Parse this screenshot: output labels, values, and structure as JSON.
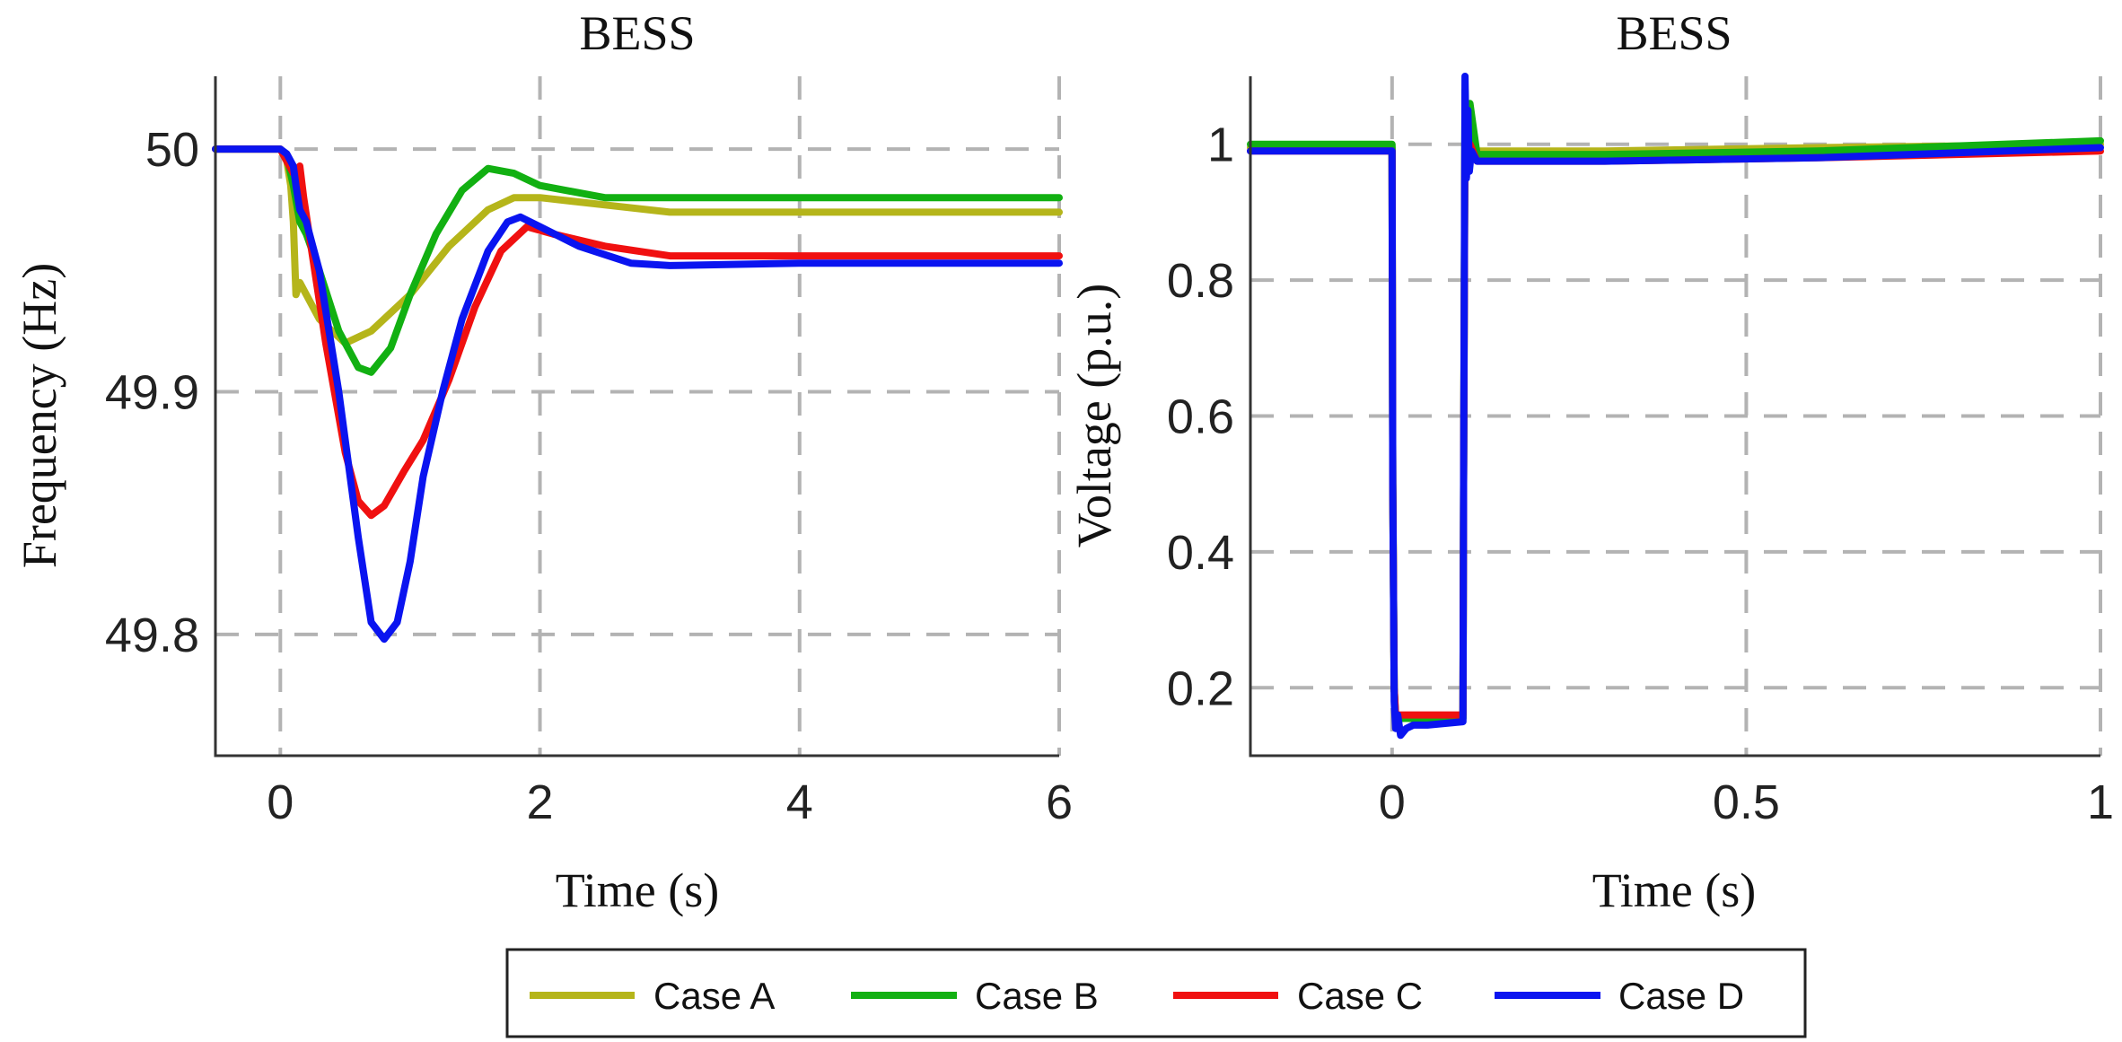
{
  "chart_data": [
    {
      "type": "line",
      "title": "BESS",
      "xlabel": "Time (s)",
      "ylabel": "Frequency (Hz)",
      "xlim": [
        -0.5,
        6
      ],
      "ylim": [
        49.75,
        50.03
      ],
      "xticks": [
        0,
        2,
        4,
        6
      ],
      "xtick_labels": [
        "0",
        "2",
        "4",
        "6"
      ],
      "yticks": [
        49.8,
        49.9,
        50
      ],
      "ytick_labels": [
        "49.8",
        "49.9",
        "50"
      ],
      "grid": true,
      "series": [
        {
          "name": "Case A",
          "color": "#b5b51a",
          "x": [
            -0.5,
            0.0,
            0.05,
            0.08,
            0.1,
            0.12,
            0.15,
            0.2,
            0.3,
            0.5,
            0.7,
            1.0,
            1.3,
            1.6,
            1.8,
            2.0,
            2.5,
            3.0,
            4.0,
            6.0
          ],
          "y": [
            50.0,
            50.0,
            49.995,
            49.985,
            49.97,
            49.94,
            49.945,
            49.94,
            49.93,
            49.92,
            49.925,
            49.94,
            49.96,
            49.975,
            49.98,
            49.98,
            49.977,
            49.974,
            49.974,
            49.974
          ]
        },
        {
          "name": "Case B",
          "color": "#12b012",
          "x": [
            -0.5,
            0.0,
            0.05,
            0.1,
            0.15,
            0.2,
            0.3,
            0.45,
            0.6,
            0.7,
            0.85,
            1.0,
            1.2,
            1.4,
            1.6,
            1.8,
            2.0,
            2.5,
            3.0,
            4.0,
            6.0
          ],
          "y": [
            50.0,
            50.0,
            49.997,
            49.985,
            49.97,
            49.965,
            49.95,
            49.925,
            49.91,
            49.908,
            49.918,
            49.94,
            49.965,
            49.983,
            49.992,
            49.99,
            49.985,
            49.98,
            49.98,
            49.98,
            49.98
          ]
        },
        {
          "name": "Case C",
          "color": "#f01010",
          "x": [
            -0.5,
            0.0,
            0.05,
            0.1,
            0.15,
            0.18,
            0.25,
            0.35,
            0.5,
            0.6,
            0.7,
            0.8,
            0.95,
            1.1,
            1.3,
            1.5,
            1.7,
            1.9,
            2.1,
            2.5,
            3.0,
            4.0,
            6.0
          ],
          "y": [
            50.0,
            50.0,
            49.995,
            49.99,
            49.993,
            49.98,
            49.955,
            49.92,
            49.875,
            49.855,
            49.849,
            49.853,
            49.867,
            49.88,
            49.905,
            49.935,
            49.958,
            49.968,
            49.965,
            49.96,
            49.956,
            49.956,
            49.956
          ]
        },
        {
          "name": "Case D",
          "color": "#0a14f0",
          "x": [
            -0.5,
            0.0,
            0.05,
            0.1,
            0.12,
            0.15,
            0.2,
            0.3,
            0.45,
            0.6,
            0.7,
            0.8,
            0.9,
            1.0,
            1.1,
            1.25,
            1.4,
            1.6,
            1.75,
            1.85,
            2.0,
            2.3,
            2.7,
            3.0,
            4.0,
            6.0
          ],
          "y": [
            50.0,
            50.0,
            49.998,
            49.993,
            49.985,
            49.975,
            49.97,
            49.95,
            49.9,
            49.84,
            49.805,
            49.798,
            49.805,
            49.83,
            49.865,
            49.9,
            49.93,
            49.958,
            49.97,
            49.972,
            49.968,
            49.96,
            49.953,
            49.952,
            49.953,
            49.953
          ]
        }
      ]
    },
    {
      "type": "line",
      "title": "BESS",
      "xlabel": "Time (s)",
      "ylabel": "Voltage (p.u.)",
      "xlim": [
        -0.2,
        1
      ],
      "ylim": [
        0.1,
        1.1
      ],
      "xticks": [
        0,
        0.5,
        1
      ],
      "xtick_labels": [
        "0",
        "0.5",
        "1"
      ],
      "yticks": [
        0.2,
        0.4,
        0.6,
        0.8,
        1
      ],
      "ytick_labels": [
        "0.2",
        "0.4",
        "0.6",
        "0.8",
        "1"
      ],
      "grid": true,
      "series": [
        {
          "name": "Case A",
          "color": "#b5b51a",
          "x": [
            -0.2,
            0.0,
            0.001,
            0.003,
            0.005,
            0.1,
            0.101,
            0.103,
            0.106,
            0.11,
            0.12,
            0.15,
            0.3,
            0.6,
            1.0
          ],
          "y": [
            0.995,
            0.995,
            0.5,
            0.2,
            0.155,
            0.155,
            0.5,
            1.05,
            0.97,
            1.02,
            0.99,
            0.99,
            0.99,
            0.995,
            1.0
          ]
        },
        {
          "name": "Case B",
          "color": "#12b012",
          "x": [
            -0.2,
            0.0,
            0.001,
            0.003,
            0.005,
            0.1,
            0.101,
            0.103,
            0.106,
            0.11,
            0.12,
            0.15,
            0.3,
            0.6,
            1.0
          ],
          "y": [
            1.0,
            1.0,
            0.5,
            0.2,
            0.155,
            0.155,
            0.5,
            1.08,
            0.97,
            1.06,
            0.985,
            0.985,
            0.985,
            0.99,
            1.005
          ]
        },
        {
          "name": "Case C",
          "color": "#f01010",
          "x": [
            -0.2,
            0.0,
            0.001,
            0.003,
            0.005,
            0.1,
            0.101,
            0.103,
            0.106,
            0.11,
            0.12,
            0.15,
            0.3,
            0.6,
            1.0
          ],
          "y": [
            0.99,
            0.99,
            0.5,
            0.2,
            0.16,
            0.16,
            0.5,
            1.04,
            0.97,
            1.0,
            0.975,
            0.975,
            0.975,
            0.98,
            0.99
          ]
        },
        {
          "name": "Case D",
          "color": "#0a14f0",
          "x": [
            -0.2,
            0.0,
            0.001,
            0.003,
            0.005,
            0.008,
            0.012,
            0.02,
            0.03,
            0.05,
            0.1,
            0.101,
            0.103,
            0.105,
            0.107,
            0.109,
            0.112,
            0.12,
            0.15,
            0.3,
            0.6,
            1.0
          ],
          "y": [
            0.99,
            0.99,
            0.5,
            0.18,
            0.14,
            0.16,
            0.13,
            0.14,
            0.145,
            0.145,
            0.15,
            0.5,
            1.1,
            0.95,
            1.05,
            0.96,
            0.99,
            0.975,
            0.975,
            0.975,
            0.98,
            0.995
          ]
        }
      ]
    }
  ],
  "legend": {
    "placement": "bottom-center",
    "items": [
      {
        "label": "Case A",
        "color": "#b5b51a"
      },
      {
        "label": "Case B",
        "color": "#12b012"
      },
      {
        "label": "Case C",
        "color": "#f01010"
      },
      {
        "label": "Case D",
        "color": "#0a14f0"
      }
    ]
  }
}
